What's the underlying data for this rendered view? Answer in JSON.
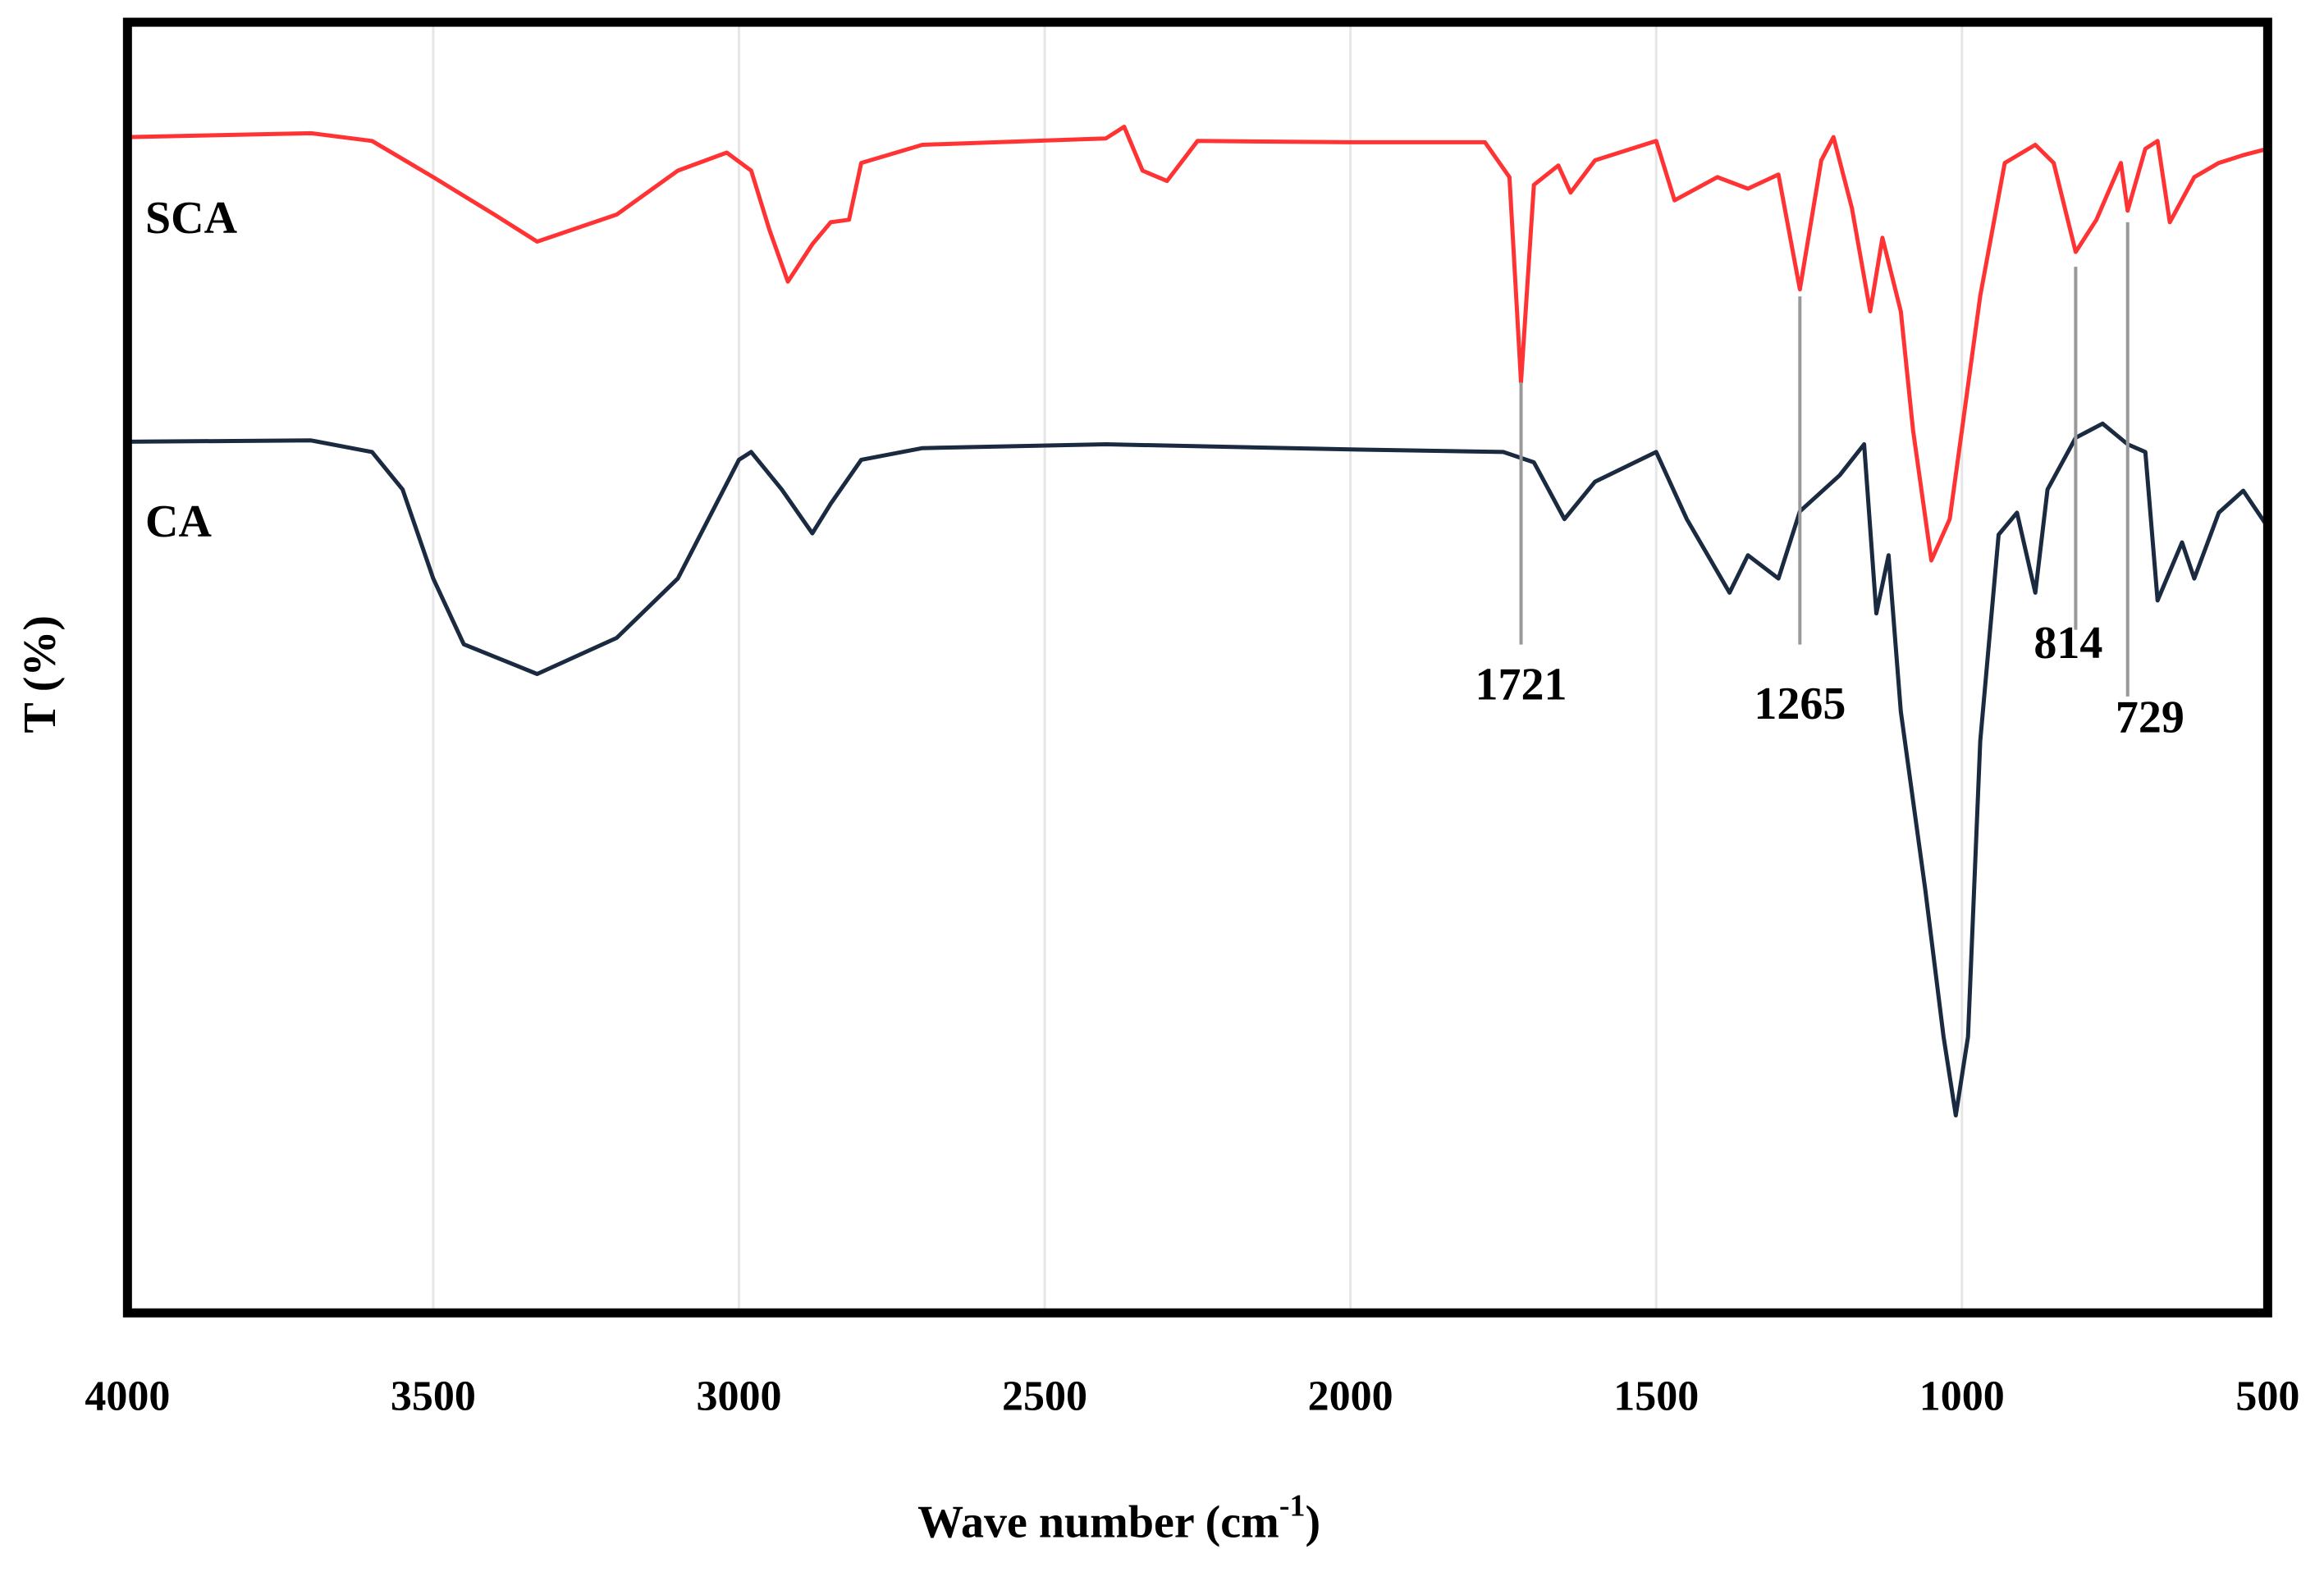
{
  "chart_data": {
    "type": "line",
    "x_label": "Wave number (cm",
    "x_label_sup": "-1",
    "x_label_end": ")",
    "y_label": "T (%)",
    "xlim": [
      4000,
      500
    ],
    "xticks": [
      4000,
      3500,
      3000,
      2500,
      2000,
      1500,
      1000,
      500
    ],
    "ylim": [
      0,
      100
    ],
    "grid": true,
    "series": [
      {
        "name": "SCA",
        "color": "#ff3333",
        "x": [
          4000,
          3700,
          3600,
          3500,
          3400,
          3330,
          3200,
          3100,
          3020,
          2980,
          2950,
          2920,
          2880,
          2850,
          2820,
          2800,
          2700,
          2400,
          2370,
          2340,
          2300,
          2250,
          2000,
          1780,
          1740,
          1721,
          1700,
          1660,
          1640,
          1600,
          1500,
          1470,
          1400,
          1350,
          1300,
          1265,
          1230,
          1210,
          1180,
          1150,
          1130,
          1100,
          1080,
          1050,
          1020,
          1000,
          970,
          930,
          880,
          850,
          814,
          780,
          740,
          729,
          700,
          680,
          660,
          620,
          580,
          540,
          500
        ],
        "values": [
          91.1,
          91.4,
          90.8,
          88,
          85.1,
          83,
          85.1,
          88.5,
          89.9,
          88.5,
          83.9,
          79.9,
          82.8,
          84.5,
          84.7,
          89.1,
          90.5,
          91,
          91.9,
          88.5,
          87.7,
          90.8,
          90.7,
          90.7,
          88,
          72.1,
          87.4,
          88.9,
          86.8,
          89.3,
          90.8,
          86.2,
          88,
          87.1,
          88.2,
          79.3,
          89.3,
          91.1,
          85.6,
          77.6,
          83.3,
          77.6,
          68.4,
          58.3,
          61.5,
          68.4,
          78.8,
          89.1,
          90.5,
          89.1,
          82.2,
          84.7,
          89.1,
          85.4,
          90.2,
          90.8,
          84.5,
          88,
          89.1,
          89.7,
          90.2
        ]
      },
      {
        "name": "CA",
        "color": "#1a2a40",
        "x": [
          4000,
          3700,
          3600,
          3550,
          3500,
          3450,
          3330,
          3200,
          3100,
          3000,
          2980,
          2930,
          2880,
          2850,
          2800,
          2700,
          2400,
          2000,
          1750,
          1700,
          1650,
          1600,
          1500,
          1450,
          1380,
          1350,
          1300,
          1265,
          1200,
          1160,
          1140,
          1120,
          1100,
          1060,
          1030,
          1010,
          990,
          970,
          940,
          910,
          880,
          860,
          814,
          770,
          729,
          700,
          680,
          640,
          620,
          580,
          540,
          500
        ],
        "values": [
          67.5,
          67.6,
          66.7,
          63.8,
          56.9,
          51.8,
          49.5,
          52.3,
          56.9,
          66.1,
          66.7,
          63.8,
          60.4,
          62.7,
          66.1,
          67,
          67.3,
          66.9,
          66.7,
          65.9,
          61.5,
          64.4,
          66.7,
          61.5,
          55.8,
          58.7,
          56.9,
          62.1,
          64.9,
          67.3,
          54.2,
          58.7,
          46.6,
          32.8,
          21.4,
          15.3,
          21.4,
          44.3,
          60.3,
          62,
          55.8,
          63.8,
          67.8,
          68.9,
          67.3,
          66.7,
          55.2,
          59.7,
          56.9,
          62,
          63.7,
          60.9
        ]
      }
    ],
    "annotations": [
      1721,
      1265,
      814,
      729
    ]
  }
}
